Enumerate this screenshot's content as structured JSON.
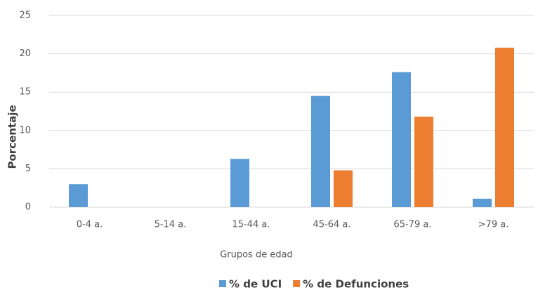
{
  "chart_data": {
    "type": "bar",
    "xlabel": "Grupos de edad",
    "ylabel": "Porcentaje",
    "categories": [
      "0-4 a.",
      "5-14 a.",
      "15-44 a.",
      "45-64 a.",
      "65-79 a.",
      ">79 a."
    ],
    "series": [
      {
        "name": "% de UCI",
        "color": "#5b9bd5",
        "values": [
          3.0,
          0,
          6.3,
          14.5,
          17.6,
          1.1
        ]
      },
      {
        "name": "% de Defunciones",
        "color": "#ed7d31",
        "values": [
          0,
          0,
          0,
          4.8,
          11.8,
          20.8
        ]
      }
    ],
    "ylim": [
      0,
      25
    ],
    "yticks": [
      0,
      5,
      10,
      15,
      20,
      25
    ],
    "grid": true,
    "legend": "bottom"
  }
}
